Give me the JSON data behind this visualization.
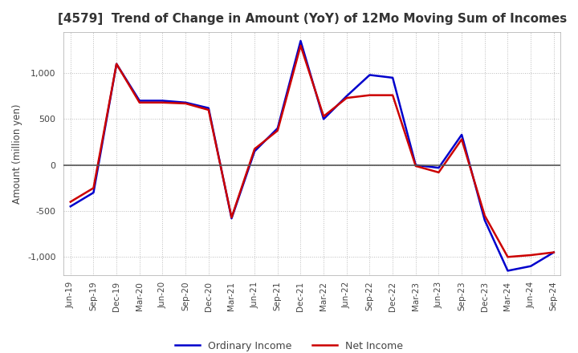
{
  "title": "[4579]  Trend of Change in Amount (YoY) of 12Mo Moving Sum of Incomes",
  "ylabel": "Amount (million yen)",
  "xlabels": [
    "Jun-19",
    "Sep-19",
    "Dec-19",
    "Mar-20",
    "Jun-20",
    "Sep-20",
    "Dec-20",
    "Mar-21",
    "Jun-21",
    "Sep-21",
    "Dec-21",
    "Mar-22",
    "Jun-22",
    "Sep-22",
    "Dec-22",
    "Mar-23",
    "Jun-23",
    "Sep-23",
    "Dec-23",
    "Mar-24",
    "Jun-24",
    "Sep-24"
  ],
  "ordinary_income": [
    -450,
    -300,
    1100,
    700,
    700,
    680,
    620,
    -580,
    150,
    400,
    1350,
    500,
    750,
    980,
    950,
    0,
    -30,
    330,
    -600,
    -1150,
    -1100,
    -950
  ],
  "net_income": [
    -400,
    -250,
    1100,
    680,
    680,
    670,
    600,
    -570,
    175,
    375,
    1300,
    530,
    730,
    760,
    760,
    -10,
    -80,
    280,
    -550,
    -1000,
    -980,
    -950
  ],
  "ordinary_color": "#0000cc",
  "net_color": "#cc0000",
  "ylim": [
    -1200,
    1450
  ],
  "yticks": [
    -1000,
    -500,
    0,
    500,
    1000
  ],
  "background_color": "#ffffff",
  "grid_color": "#bbbbbb",
  "title_color": "#333333",
  "zero_line_color": "#555555"
}
